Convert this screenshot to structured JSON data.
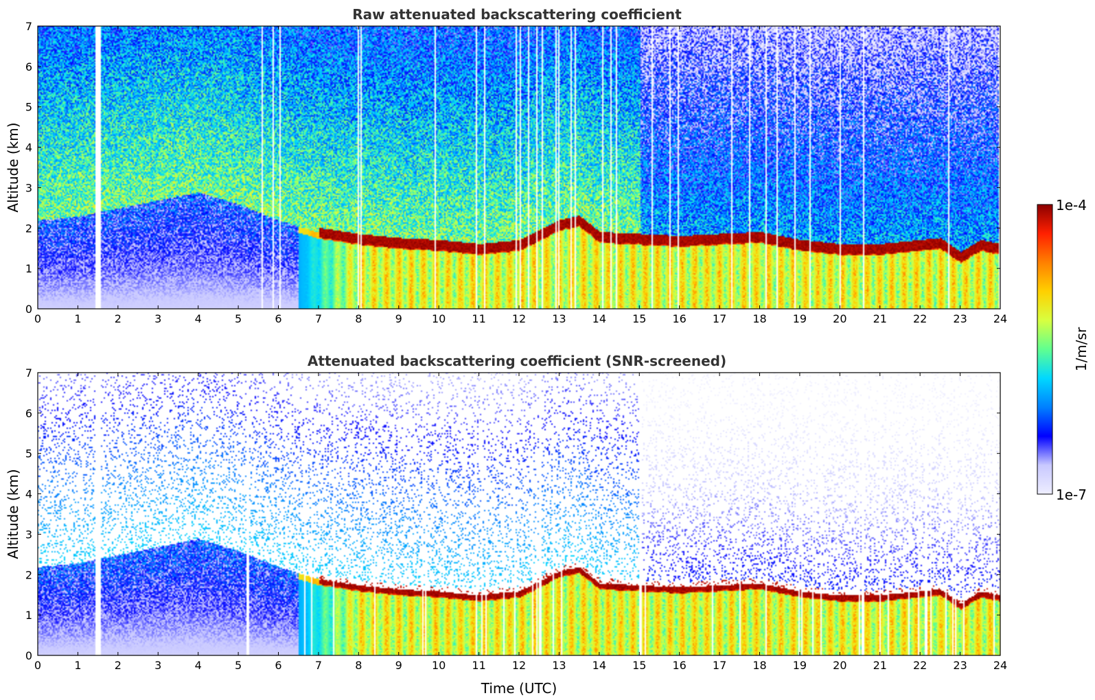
{
  "chart_data": [
    {
      "type": "heatmap",
      "title": "Raw attenuated backscattering coefficient",
      "xlabel": "",
      "ylabel": "Altitude (km)",
      "xlim": [
        0,
        24
      ],
      "ylim": [
        0,
        7
      ],
      "x_ticks": [
        "0",
        "1",
        "2",
        "3",
        "4",
        "5",
        "6",
        "7",
        "8",
        "9",
        "10",
        "11",
        "12",
        "13",
        "14",
        "15",
        "16",
        "17",
        "18",
        "19",
        "20",
        "21",
        "22",
        "23",
        "24"
      ],
      "y_ticks": [
        "0",
        "1",
        "2",
        "3",
        "4",
        "5",
        "6",
        "7"
      ],
      "screened": false,
      "boundary_layer_top_km": [
        [
          0,
          2.2
        ],
        [
          1,
          2.3
        ],
        [
          2,
          2.5
        ],
        [
          3,
          2.7
        ],
        [
          4,
          2.9
        ],
        [
          5,
          2.6
        ],
        [
          6,
          2.2
        ],
        [
          7,
          1.9
        ],
        [
          8,
          1.75
        ],
        [
          9,
          1.65
        ],
        [
          10,
          1.6
        ],
        [
          11,
          1.5
        ],
        [
          12,
          1.6
        ],
        [
          13,
          2.1
        ],
        [
          13.5,
          2.2
        ],
        [
          14,
          1.8
        ],
        [
          15,
          1.75
        ],
        [
          16,
          1.7
        ],
        [
          17,
          1.75
        ],
        [
          18,
          1.8
        ],
        [
          19,
          1.6
        ],
        [
          20,
          1.5
        ],
        [
          21,
          1.5
        ],
        [
          22,
          1.6
        ],
        [
          22.5,
          1.65
        ],
        [
          23,
          1.3
        ],
        [
          23.5,
          1.6
        ],
        [
          24,
          1.5
        ]
      ]
    },
    {
      "type": "heatmap",
      "title": "Attenuated backscattering coefficient (SNR-screened)",
      "xlabel": "Time (UTC)",
      "ylabel": "Altitude (km)",
      "xlim": [
        0,
        24
      ],
      "ylim": [
        0,
        7
      ],
      "x_ticks": [
        "0",
        "1",
        "2",
        "3",
        "4",
        "5",
        "6",
        "7",
        "8",
        "9",
        "10",
        "11",
        "12",
        "13",
        "14",
        "15",
        "16",
        "17",
        "18",
        "19",
        "20",
        "21",
        "22",
        "23",
        "24"
      ],
      "y_ticks": [
        "0",
        "1",
        "2",
        "3",
        "4",
        "5",
        "6",
        "7"
      ],
      "screened": true
    }
  ],
  "colorbar": {
    "label": "1/m/sr",
    "max_label": "1e-4",
    "min_label": "1e-7",
    "scale": "log",
    "colors": [
      "#eeeeff",
      "#c8c8ff",
      "#0000ff",
      "#0080ff",
      "#00d8ff",
      "#60ff90",
      "#d8ff40",
      "#ffd000",
      "#ff8000",
      "#ff2000",
      "#8b0000"
    ]
  }
}
